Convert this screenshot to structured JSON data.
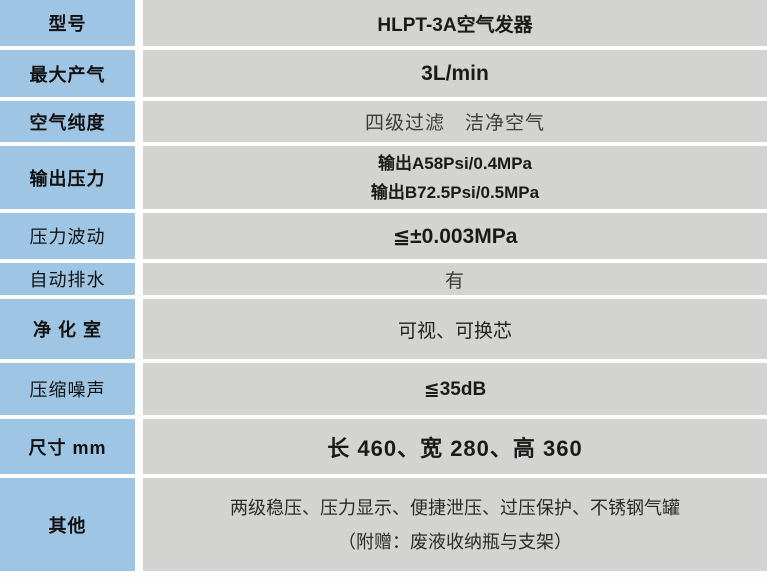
{
  "colors": {
    "label_bg": "#9fc5e4",
    "value_bg": "#d3d3d1",
    "border": "#ffffff",
    "text": "#1a1a1a"
  },
  "table": {
    "rows": [
      {
        "label": "型号",
        "value": "HLPT-3A空气发器"
      },
      {
        "label": "最大产气",
        "value": "3L/min"
      },
      {
        "label": "空气纯度",
        "value": "四级过滤　洁净空气"
      },
      {
        "label": "输出压力",
        "value_lines": [
          "输出A58Psi/0.4MPa",
          "输出B72.5Psi/0.5MPa"
        ]
      },
      {
        "label": "压力波动",
        "value": "≦±0.003MPa"
      },
      {
        "label": "自动排水",
        "value": "有"
      },
      {
        "label": "净 化 室",
        "value": "可视、可换芯"
      },
      {
        "label": "压缩噪声",
        "value": "≦35dB"
      },
      {
        "label": "尺寸 mm",
        "value": "长 460、宽 280、高 360"
      },
      {
        "label": "其他",
        "value_lines": [
          "两级稳压、压力显示、便捷泄压、过压保护、不锈钢气罐",
          "（附赠：废液收纳瓶与支架）"
        ]
      }
    ]
  }
}
